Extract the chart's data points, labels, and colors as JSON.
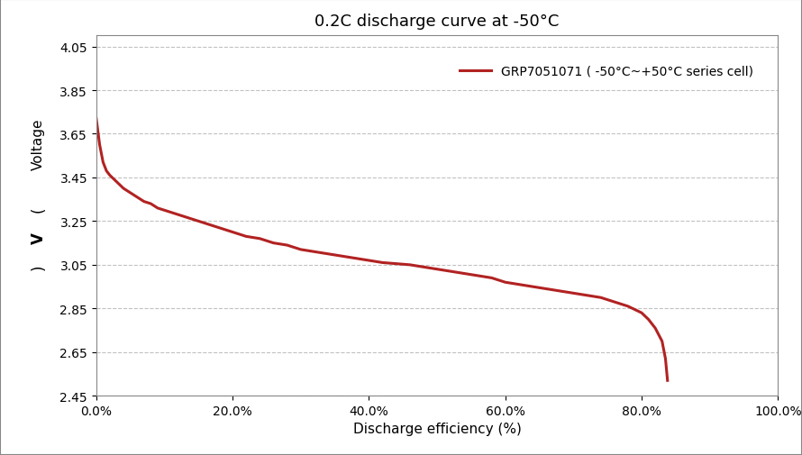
{
  "title": "0.2C discharge curve at -50°C",
  "xlabel": "Discharge efficiency (%)",
  "legend_label": "GRP7051071 ( -50°C~+50°C series cell)",
  "line_color": "#b22222",
  "xlim": [
    0.0,
    1.0
  ],
  "ylim": [
    2.45,
    4.1
  ],
  "yticks": [
    2.45,
    2.65,
    2.85,
    3.05,
    3.25,
    3.45,
    3.65,
    3.85,
    4.05
  ],
  "xticks": [
    0.0,
    0.2,
    0.4,
    0.6,
    0.8,
    1.0
  ],
  "x_data": [
    0.0,
    0.005,
    0.01,
    0.015,
    0.02,
    0.03,
    0.04,
    0.05,
    0.06,
    0.07,
    0.08,
    0.09,
    0.1,
    0.12,
    0.14,
    0.16,
    0.18,
    0.2,
    0.22,
    0.24,
    0.26,
    0.28,
    0.3,
    0.32,
    0.34,
    0.36,
    0.38,
    0.4,
    0.42,
    0.44,
    0.46,
    0.48,
    0.5,
    0.52,
    0.54,
    0.56,
    0.58,
    0.6,
    0.62,
    0.64,
    0.66,
    0.68,
    0.7,
    0.72,
    0.74,
    0.76,
    0.78,
    0.8,
    0.81,
    0.82,
    0.83,
    0.835,
    0.838
  ],
  "y_data": [
    3.72,
    3.6,
    3.52,
    3.48,
    3.46,
    3.43,
    3.4,
    3.38,
    3.36,
    3.34,
    3.33,
    3.31,
    3.3,
    3.28,
    3.26,
    3.24,
    3.22,
    3.2,
    3.18,
    3.17,
    3.15,
    3.14,
    3.12,
    3.11,
    3.1,
    3.09,
    3.08,
    3.07,
    3.06,
    3.055,
    3.05,
    3.04,
    3.03,
    3.02,
    3.01,
    3.0,
    2.99,
    2.97,
    2.96,
    2.95,
    2.94,
    2.93,
    2.92,
    2.91,
    2.9,
    2.88,
    2.86,
    2.83,
    2.8,
    2.76,
    2.7,
    2.62,
    2.52
  ],
  "background_color": "#ffffff",
  "grid_color": "#bbbbbb",
  "border_color": "#999999",
  "title_fontsize": 13,
  "label_fontsize": 11,
  "tick_fontsize": 10,
  "legend_fontsize": 10,
  "ylabel_parts": [
    "Voltage",
    "(",
    "V",
    ")"
  ]
}
